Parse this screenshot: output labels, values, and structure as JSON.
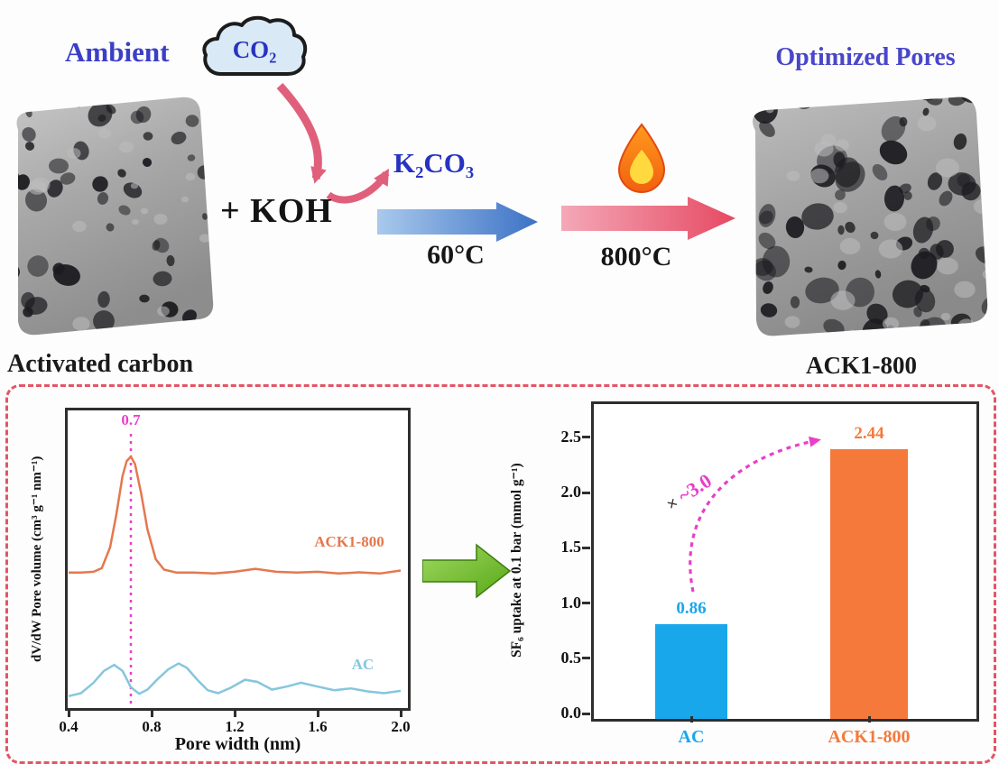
{
  "scheme": {
    "ambient_label": "Ambient",
    "co2_label": "CO₂",
    "koh_label": "+ KOH",
    "k2co3_label": "K₂CO₃",
    "step1_temperature": "60°C",
    "step2_temperature": "800°C",
    "optimized_pores_label": "Optimized Pores",
    "activated_carbon_label": "Activated carbon",
    "product_label": "ACK1-800"
  },
  "colors": {
    "scheme_blue_text": "#3b3fc6",
    "dark_text": "#1a1a1a",
    "pink_arrow": "#e0607c",
    "blue_arrow": "#4a7cd0",
    "green_arrow": "#6cb832",
    "panel_border": "#e25666",
    "magenta_annotation": "#e93fc9"
  },
  "icons": {
    "co2_cloud": "cloud",
    "flame": "flame",
    "co2_to_koh_arrow": "curved-arrow-down",
    "koh_to_k2co3_arrow": "curved-arrow-up-right",
    "step1_arrow": "block-arrow-right",
    "step2_arrow": "block-arrow-right",
    "charts_link_arrow": "block-arrow-right",
    "uptake_increase_arrow": "dashed-curved-arrow-up-right"
  },
  "chart_data": [
    {
      "type": "line",
      "title": "",
      "xlabel": "Pore width (nm)",
      "ylabel": "dV/dW Pore volume (cm³ g⁻¹ nm⁻¹)",
      "xlim": [
        0.4,
        2.0
      ],
      "xticks": [
        "0.4",
        "0.8",
        "1.2",
        "1.6",
        "2.0"
      ],
      "ylim": [
        0,
        1
      ],
      "grid": false,
      "legend_position": "inline-curve-labels",
      "peak_annotation": {
        "text": "0.7",
        "x": 0.7
      },
      "series": [
        {
          "name": "ACK1-800",
          "color": "#e4784e",
          "x": [
            0.4,
            0.46,
            0.52,
            0.56,
            0.6,
            0.63,
            0.66,
            0.68,
            0.7,
            0.72,
            0.75,
            0.78,
            0.82,
            0.86,
            0.92,
            1.0,
            1.1,
            1.2,
            1.3,
            1.4,
            1.5,
            1.6,
            1.7,
            1.8,
            1.9,
            2.0
          ],
          "y": [
            0.455,
            0.455,
            0.458,
            0.47,
            0.54,
            0.65,
            0.78,
            0.83,
            0.845,
            0.82,
            0.72,
            0.6,
            0.5,
            0.465,
            0.455,
            0.455,
            0.452,
            0.458,
            0.468,
            0.458,
            0.455,
            0.458,
            0.452,
            0.456,
            0.452,
            0.462
          ]
        },
        {
          "name": "AC",
          "color": "#85c6de",
          "x": [
            0.4,
            0.46,
            0.52,
            0.57,
            0.62,
            0.66,
            0.7,
            0.74,
            0.78,
            0.83,
            0.88,
            0.93,
            0.97,
            1.02,
            1.07,
            1.12,
            1.18,
            1.25,
            1.31,
            1.38,
            1.45,
            1.52,
            1.6,
            1.68,
            1.76,
            1.84,
            1.92,
            2.0
          ],
          "y": [
            0.04,
            0.05,
            0.085,
            0.125,
            0.145,
            0.125,
            0.07,
            0.048,
            0.062,
            0.098,
            0.13,
            0.15,
            0.135,
            0.095,
            0.06,
            0.05,
            0.068,
            0.095,
            0.088,
            0.062,
            0.072,
            0.085,
            0.072,
            0.06,
            0.066,
            0.056,
            0.05,
            0.058
          ]
        }
      ]
    },
    {
      "type": "bar",
      "title": "",
      "categories": [
        "AC",
        "ACK1-800"
      ],
      "values": [
        0.86,
        2.44
      ],
      "value_labels": [
        "0.86",
        "2.44"
      ],
      "bar_colors": [
        "#19a7ec",
        "#f5793b"
      ],
      "xlabel": "",
      "ylabel": "SF₆ uptake at 0.1 bar (mmol g⁻¹)",
      "ylim": [
        0,
        2.8
      ],
      "yticks": [
        "0.0",
        "0.5",
        "1.0",
        "1.5",
        "2.0",
        "2.5"
      ],
      "grid": false,
      "annotation": {
        "sign": "×",
        "value": "~3.0"
      }
    }
  ]
}
